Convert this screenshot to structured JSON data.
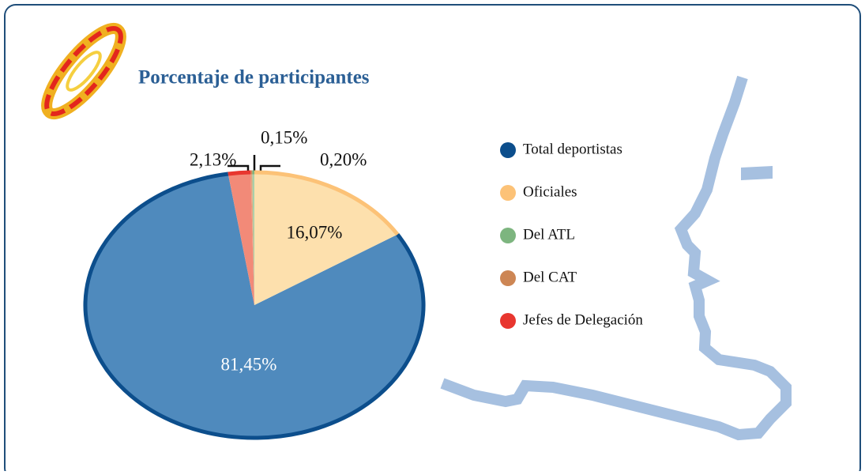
{
  "chart_data": {
    "type": "pie",
    "title": "Porcentaje de participantes",
    "series": [
      {
        "name": "Total deportistas",
        "color": "#0c4e8c",
        "fill": "#4f8abd",
        "values": [
          81.45
        ],
        "value_labels": [
          "81,45%"
        ]
      },
      {
        "name": "Oficiales",
        "color": "#fcc277",
        "fill": "#fde0ad",
        "values": [
          16.07
        ],
        "value_labels": [
          "16,07%"
        ]
      },
      {
        "name": "Del ATL",
        "color": "#7db57f",
        "fill": "#a9d0aa",
        "values": [
          0.2
        ],
        "value_labels": [
          "0,20%"
        ]
      },
      {
        "name": "Del CAT",
        "color": "#cd8654",
        "fill": "#dfa980",
        "values": [
          0.15
        ],
        "value_labels": [
          "0,15%"
        ]
      },
      {
        "name": "Jefes de Delegación",
        "color": "#e8362f",
        "fill": "#f28a78",
        "values": [
          2.13
        ],
        "value_labels": [
          "2,13%"
        ]
      }
    ],
    "legend": "right"
  }
}
